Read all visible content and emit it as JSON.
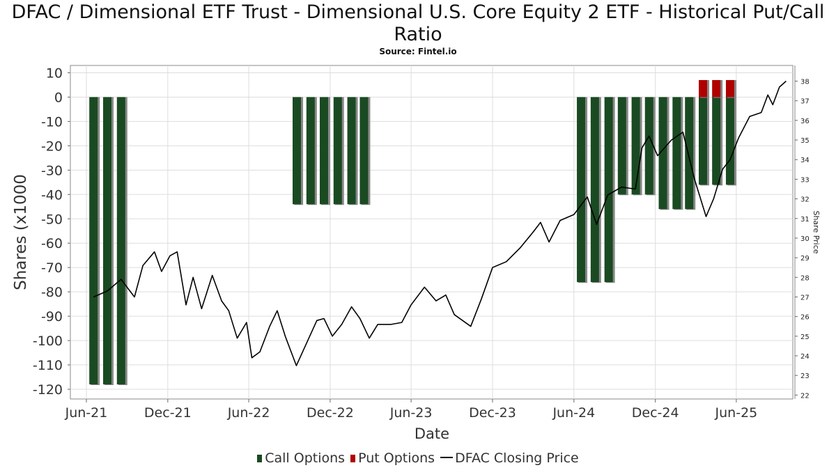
{
  "title": "DFAC / Dimensional ETF Trust - Dimensional U.S. Core Equity 2 ETF - Historical Put/Call Ratio",
  "subtitle": "Source: Fintel.io",
  "legend": {
    "call_label": "Call Options",
    "put_label": "Put Options",
    "price_label": "DFAC Closing Price"
  },
  "colors": {
    "call": "#1a4a22",
    "put": "#b00000",
    "price_line": "#000000",
    "grid": "#dddddd"
  },
  "chart_data": {
    "type": "bar",
    "title": "DFAC / Dimensional ETF Trust - Dimensional U.S. Core Equity 2 ETF - Historical Put/Call Ratio",
    "subtitle": "Source: Fintel.io",
    "xlabel": "Date",
    "ylabel": "Shares (x1000",
    "y2label": "Share Price",
    "xlim": [
      "2021-05-10",
      "2025-10-20"
    ],
    "ylim": [
      -124,
      13
    ],
    "y2lim": [
      21.8,
      38.8
    ],
    "x_ticks": [
      {
        "date": "2021-06-15",
        "label": "Jun-21"
      },
      {
        "date": "2021-12-15",
        "label": "Dec-21"
      },
      {
        "date": "2022-06-15",
        "label": "Jun-22"
      },
      {
        "date": "2022-12-15",
        "label": "Dec-22"
      },
      {
        "date": "2023-06-15",
        "label": "Jun-23"
      },
      {
        "date": "2023-12-15",
        "label": "Dec-23"
      },
      {
        "date": "2024-06-15",
        "label": "Jun-24"
      },
      {
        "date": "2024-12-15",
        "label": "Dec-24"
      },
      {
        "date": "2025-06-15",
        "label": "Jun-25"
      }
    ],
    "y_ticks": [
      10,
      0,
      -10,
      -20,
      -30,
      -40,
      -50,
      -60,
      -70,
      -80,
      -90,
      -100,
      -110,
      -120
    ],
    "y2_ticks": [
      38,
      37,
      36,
      35,
      34,
      33,
      32,
      31,
      30,
      29,
      28,
      27,
      26,
      25,
      24,
      23,
      22
    ],
    "grid": true,
    "legend_position": "bottom",
    "series": [
      {
        "name": "Call Options",
        "type": "bar",
        "points": [
          {
            "x": "2021-07-01",
            "y": -118
          },
          {
            "x": "2021-08-01",
            "y": -118
          },
          {
            "x": "2021-09-01",
            "y": -118
          },
          {
            "x": "2022-10-01",
            "y": -44
          },
          {
            "x": "2022-11-01",
            "y": -44
          },
          {
            "x": "2022-12-01",
            "y": -44
          },
          {
            "x": "2023-01-01",
            "y": -44
          },
          {
            "x": "2023-02-01",
            "y": -44
          },
          {
            "x": "2023-03-01",
            "y": -44
          },
          {
            "x": "2024-07-01",
            "y": -76
          },
          {
            "x": "2024-08-01",
            "y": -76
          },
          {
            "x": "2024-09-01",
            "y": -76
          },
          {
            "x": "2024-10-01",
            "y": -40
          },
          {
            "x": "2024-11-01",
            "y": -40
          },
          {
            "x": "2024-12-01",
            "y": -40
          },
          {
            "x": "2025-01-01",
            "y": -46
          },
          {
            "x": "2025-02-01",
            "y": -46
          },
          {
            "x": "2025-03-01",
            "y": -46
          },
          {
            "x": "2025-04-01",
            "y": -36
          },
          {
            "x": "2025-05-01",
            "y": -36
          },
          {
            "x": "2025-06-01",
            "y": -36
          }
        ]
      },
      {
        "name": "Put Options",
        "type": "bar",
        "points": [
          {
            "x": "2025-04-01",
            "y": 7
          },
          {
            "x": "2025-05-01",
            "y": 7
          },
          {
            "x": "2025-06-01",
            "y": 7
          }
        ]
      },
      {
        "name": "DFAC Closing Price",
        "type": "line",
        "axis": "right",
        "points": [
          {
            "x": "2021-07-01",
            "y": 27.0
          },
          {
            "x": "2021-08-01",
            "y": 27.3
          },
          {
            "x": "2021-09-01",
            "y": 27.9
          },
          {
            "x": "2021-10-01",
            "y": 27.0
          },
          {
            "x": "2021-10-20",
            "y": 28.6
          },
          {
            "x": "2021-11-15",
            "y": 29.3
          },
          {
            "x": "2021-12-01",
            "y": 28.3
          },
          {
            "x": "2021-12-20",
            "y": 29.1
          },
          {
            "x": "2022-01-05",
            "y": 29.3
          },
          {
            "x": "2022-01-25",
            "y": 26.6
          },
          {
            "x": "2022-02-10",
            "y": 28.0
          },
          {
            "x": "2022-03-01",
            "y": 26.4
          },
          {
            "x": "2022-03-25",
            "y": 28.1
          },
          {
            "x": "2022-04-15",
            "y": 26.8
          },
          {
            "x": "2022-05-01",
            "y": 26.3
          },
          {
            "x": "2022-05-20",
            "y": 24.9
          },
          {
            "x": "2022-06-10",
            "y": 25.7
          },
          {
            "x": "2022-06-22",
            "y": 23.9
          },
          {
            "x": "2022-07-10",
            "y": 24.2
          },
          {
            "x": "2022-08-01",
            "y": 25.5
          },
          {
            "x": "2022-08-18",
            "y": 26.3
          },
          {
            "x": "2022-09-05",
            "y": 25.0
          },
          {
            "x": "2022-09-30",
            "y": 23.5
          },
          {
            "x": "2022-10-20",
            "y": 24.5
          },
          {
            "x": "2022-11-15",
            "y": 25.8
          },
          {
            "x": "2022-12-01",
            "y": 25.9
          },
          {
            "x": "2022-12-20",
            "y": 25.0
          },
          {
            "x": "2023-01-10",
            "y": 25.6
          },
          {
            "x": "2023-02-01",
            "y": 26.5
          },
          {
            "x": "2023-02-20",
            "y": 25.9
          },
          {
            "x": "2023-03-13",
            "y": 24.9
          },
          {
            "x": "2023-04-01",
            "y": 25.6
          },
          {
            "x": "2023-05-01",
            "y": 25.6
          },
          {
            "x": "2023-05-25",
            "y": 25.7
          },
          {
            "x": "2023-06-15",
            "y": 26.6
          },
          {
            "x": "2023-07-15",
            "y": 27.5
          },
          {
            "x": "2023-08-10",
            "y": 26.8
          },
          {
            "x": "2023-09-01",
            "y": 27.1
          },
          {
            "x": "2023-09-20",
            "y": 26.1
          },
          {
            "x": "2023-10-27",
            "y": 25.5
          },
          {
            "x": "2023-11-20",
            "y": 26.9
          },
          {
            "x": "2023-12-15",
            "y": 28.5
          },
          {
            "x": "2024-01-15",
            "y": 28.8
          },
          {
            "x": "2024-02-15",
            "y": 29.5
          },
          {
            "x": "2024-03-15",
            "y": 30.3
          },
          {
            "x": "2024-04-01",
            "y": 30.8
          },
          {
            "x": "2024-04-20",
            "y": 29.8
          },
          {
            "x": "2024-05-15",
            "y": 30.9
          },
          {
            "x": "2024-06-15",
            "y": 31.2
          },
          {
            "x": "2024-07-15",
            "y": 32.1
          },
          {
            "x": "2024-08-05",
            "y": 30.7
          },
          {
            "x": "2024-08-30",
            "y": 32.2
          },
          {
            "x": "2024-09-30",
            "y": 32.6
          },
          {
            "x": "2024-10-31",
            "y": 32.5
          },
          {
            "x": "2024-11-15",
            "y": 34.6
          },
          {
            "x": "2024-12-01",
            "y": 35.2
          },
          {
            "x": "2024-12-20",
            "y": 34.2
          },
          {
            "x": "2025-01-20",
            "y": 35.0
          },
          {
            "x": "2025-02-15",
            "y": 35.4
          },
          {
            "x": "2025-03-13",
            "y": 33.0
          },
          {
            "x": "2025-04-08",
            "y": 31.1
          },
          {
            "x": "2025-04-25",
            "y": 32.0
          },
          {
            "x": "2025-05-15",
            "y": 33.5
          },
          {
            "x": "2025-06-01",
            "y": 34.0
          },
          {
            "x": "2025-06-20",
            "y": 35.1
          },
          {
            "x": "2025-07-15",
            "y": 36.2
          },
          {
            "x": "2025-08-10",
            "y": 36.4
          },
          {
            "x": "2025-08-25",
            "y": 37.3
          },
          {
            "x": "2025-09-05",
            "y": 36.8
          },
          {
            "x": "2025-09-20",
            "y": 37.7
          },
          {
            "x": "2025-10-05",
            "y": 38.0
          }
        ]
      }
    ]
  }
}
